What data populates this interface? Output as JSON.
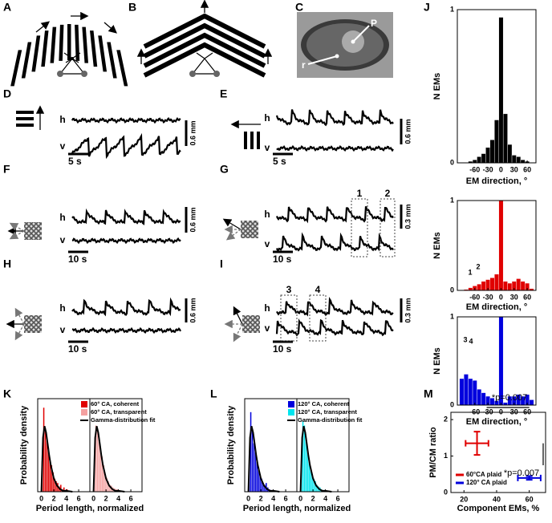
{
  "panels": [
    "A",
    "B",
    "C",
    "D",
    "E",
    "F",
    "G",
    "H",
    "I",
    "J",
    "K",
    "L",
    "M"
  ],
  "eye": [
    "P",
    "r"
  ],
  "traces": [
    {
      "h": "h",
      "v": "v",
      "amplitude": "0.6 mm",
      "time": "5 s"
    },
    {
      "h": "h",
      "v": "v",
      "amplitude": "0.6 mm",
      "time": "5 s"
    },
    {
      "h": "h",
      "v": "v",
      "amplitude": "0.6 mm",
      "time": "10 s"
    },
    {
      "h": "h",
      "v": "v",
      "amplitude": "0.3 mm",
      "time": "10 s",
      "windows": [
        "1",
        "2"
      ]
    },
    {
      "h": "h",
      "v": "v",
      "amplitude": "0.6 mm",
      "time": "10 s"
    },
    {
      "h": "h",
      "v": "v",
      "amplitude": "0.3 mm",
      "time": "10 s",
      "windows": [
        "3",
        "4"
      ]
    }
  ],
  "chart_data": [
    {
      "type": "histogram",
      "ylabel": "N EMs",
      "xlabel": "EM direction, °",
      "bins": [
        -95,
        -85,
        -75,
        -65,
        -55,
        -45,
        -35,
        -25,
        -15,
        -5,
        5,
        15,
        25,
        35,
        45,
        55,
        65,
        75
      ],
      "series": [
        {
          "color": "#000000",
          "values": [
            0,
            0,
            0.01,
            0.02,
            0.04,
            0.06,
            0.1,
            0.15,
            0.28,
            0.95,
            0.32,
            0.12,
            0.05,
            0.04,
            0.02,
            0.01,
            0
          ]
        }
      ],
      "xlim": [
        -100,
        80
      ],
      "xticks": [
        -60,
        -30,
        0,
        30,
        60
      ],
      "ylim": [
        0,
        1
      ],
      "yticks": [
        0,
        1
      ]
    },
    {
      "type": "histogram",
      "ylabel": "N EMs",
      "xlabel": "EM direction, °",
      "annotations": [
        "1",
        "2"
      ],
      "bins": [
        -95,
        -85,
        -75,
        -65,
        -55,
        -45,
        -35,
        -25,
        -15,
        -5,
        5,
        15,
        25,
        35,
        45,
        55,
        65,
        75
      ],
      "series": [
        {
          "color": "#e00000",
          "values": [
            0,
            0.01,
            0.03,
            0.05,
            0.07,
            0.1,
            0.12,
            0.14,
            0.18,
            1,
            0.1,
            0.08,
            0.1,
            0.13,
            0.1,
            0.08,
            0.02
          ]
        }
      ],
      "xlim": [
        -100,
        80
      ],
      "xticks": [
        -60,
        -30,
        0,
        30,
        60
      ],
      "ylim": [
        0,
        1
      ],
      "yticks": [
        0,
        1
      ]
    },
    {
      "type": "histogram",
      "ylabel": "N EMs",
      "xlabel": "EM direction, °",
      "annotations": [
        "3",
        "4"
      ],
      "bins": [
        -95,
        -85,
        -75,
        -65,
        -55,
        -45,
        -35,
        -25,
        -15,
        -5,
        5,
        15,
        25,
        35,
        45,
        55,
        65,
        75
      ],
      "series": [
        {
          "color": "#0000dd",
          "values": [
            0.3,
            0.35,
            0.3,
            0.28,
            0.18,
            0.14,
            0.1,
            0.08,
            0.05,
            1,
            0.03,
            0.1,
            0.1,
            0.12,
            0.1,
            0.12,
            0.06
          ]
        }
      ],
      "xlim": [
        -100,
        80
      ],
      "xticks": [
        -60,
        -30,
        0,
        30,
        60
      ],
      "ylim": [
        0,
        1
      ],
      "yticks": [
        0,
        1
      ]
    },
    {
      "type": "histogram",
      "ylabel": "Probability density",
      "xlabel": "Period length, normalized",
      "bins": [
        0,
        0.25,
        0.5,
        0.75,
        1,
        1.25,
        1.5,
        1.75,
        2,
        2.25,
        2.5,
        2.75,
        3,
        3.25,
        3.5,
        3.75,
        4,
        4.25,
        4.5,
        4.75,
        5
      ],
      "series": [
        {
          "name": "60° CA, coherent",
          "color": "#e00000",
          "values": [
            0.35,
            0.95,
            0.72,
            0.58,
            0.5,
            0.35,
            0.3,
            0.22,
            0.15,
            0.12,
            0.1,
            0.06,
            0.08,
            0.03,
            0.05,
            0.02,
            0.03,
            0,
            0,
            0
          ]
        }
      ],
      "fit": {
        "color": "#000000",
        "x": [
          0,
          0.25,
          0.5,
          0.75,
          1,
          1.25,
          1.5,
          2,
          2.5,
          3,
          3.5,
          4,
          5
        ],
        "values": [
          0,
          0.61,
          0.74,
          0.67,
          0.54,
          0.41,
          0.3,
          0.15,
          0.07,
          0.03,
          0.01,
          0.01,
          0
        ]
      },
      "xlim": [
        -0.6,
        7.8
      ],
      "xticks": [
        0,
        2,
        4,
        6
      ],
      "ylim": [
        0,
        1.05
      ]
    },
    {
      "type": "histogram",
      "bins": [
        0,
        0.25,
        0.5,
        0.75,
        1,
        1.25,
        1.5,
        1.75,
        2,
        2.25,
        2.5,
        2.75,
        3,
        3.25,
        3.5,
        3.75,
        4,
        4.25,
        4.5,
        4.75,
        5
      ],
      "series": [
        {
          "name": "60° CA, transparent",
          "color": "#f4a0a0",
          "values": [
            0.3,
            0.75,
            0.72,
            0.6,
            0.5,
            0.4,
            0.3,
            0.2,
            0.16,
            0.12,
            0.08,
            0.07,
            0.05,
            0.04,
            0.03,
            0.03,
            0.02,
            0.01,
            0.01,
            0
          ]
        }
      ],
      "fit": {
        "name": "Gamma-distribution fit",
        "color": "#000000",
        "x": [
          0,
          0.25,
          0.5,
          0.75,
          1,
          1.25,
          1.5,
          2,
          2.5,
          3,
          3.5,
          4,
          5
        ],
        "values": [
          0,
          0.61,
          0.74,
          0.67,
          0.54,
          0.41,
          0.3,
          0.15,
          0.07,
          0.03,
          0.01,
          0.01,
          0
        ]
      },
      "xlim": [
        -0.6,
        7.8
      ],
      "xticks": [
        0,
        2,
        4,
        6
      ],
      "ylim": [
        0,
        1.05
      ]
    },
    {
      "type": "histogram",
      "ylabel": "Probability density",
      "xlabel": "Period length, normalized",
      "bins": [
        0,
        0.25,
        0.5,
        0.75,
        1,
        1.25,
        1.5,
        1.75,
        2,
        2.25,
        2.5,
        2.75,
        3,
        3.25,
        3.5,
        3.75,
        4,
        4.25,
        4.5,
        4.75,
        5
      ],
      "series": [
        {
          "name": "120° CA, coherent",
          "color": "#0000dd",
          "values": [
            0.3,
            0.9,
            0.7,
            0.55,
            0.45,
            0.35,
            0.28,
            0.2,
            0.15,
            0.1,
            0.08,
            0.1,
            0.05,
            0.03,
            0.02,
            0.02,
            0,
            0,
            0,
            0
          ]
        }
      ],
      "fit": {
        "color": "#000000",
        "x": [
          0,
          0.25,
          0.5,
          0.75,
          1,
          1.25,
          1.5,
          2,
          2.5,
          3,
          3.5,
          4,
          5
        ],
        "values": [
          0,
          0.61,
          0.74,
          0.67,
          0.54,
          0.41,
          0.3,
          0.15,
          0.07,
          0.03,
          0.01,
          0.01,
          0
        ]
      },
      "xlim": [
        -0.6,
        7.8
      ],
      "xticks": [
        0,
        2,
        4,
        6
      ],
      "ylim": [
        0,
        1.05
      ]
    },
    {
      "type": "histogram",
      "bins": [
        0,
        0.25,
        0.5,
        0.75,
        1,
        1.25,
        1.5,
        1.75,
        2,
        2.25,
        2.5,
        2.75,
        3,
        3.25,
        3.5,
        3.75,
        4,
        4.25,
        4.5,
        4.75,
        5
      ],
      "series": [
        {
          "name": "120° CA, transparent",
          "color": "#00e5ee",
          "values": [
            0.35,
            0.8,
            0.75,
            0.6,
            0.45,
            0.35,
            0.28,
            0.2,
            0.15,
            0.12,
            0.08,
            0.06,
            0.05,
            0.03,
            0.02,
            0.02,
            0.01,
            0,
            0,
            0
          ]
        }
      ],
      "fit": {
        "name": "Gamma-distribution fit",
        "color": "#000000",
        "x": [
          0,
          0.25,
          0.5,
          0.75,
          1,
          1.25,
          1.5,
          2,
          2.5,
          3,
          3.5,
          4,
          5
        ],
        "values": [
          0,
          0.61,
          0.74,
          0.67,
          0.54,
          0.41,
          0.3,
          0.15,
          0.07,
          0.03,
          0.01,
          0.01,
          0
        ]
      },
      "xlim": [
        -0.6,
        7.8
      ],
      "xticks": [
        0,
        2,
        4,
        6
      ],
      "ylim": [
        0,
        1.05
      ]
    },
    {
      "type": "scatter",
      "ylabel": "PM/CM ratio",
      "xlabel": "Component EMs, %",
      "series": [
        {
          "name": "60°CA plaid",
          "color": "#e00000",
          "x": [
            28
          ],
          "values": [
            1.35
          ],
          "x_err": [
            7
          ],
          "y_err": [
            0.32
          ]
        },
        {
          "name": "120° CA plaid",
          "color": "#0000dd",
          "x": [
            60
          ],
          "values": [
            0.4
          ],
          "x_err": [
            7
          ],
          "y_err": [
            0.05
          ]
        }
      ],
      "annotations": [
        "*p=0.007",
        "*p=0.007"
      ],
      "xlim": [
        12,
        70
      ],
      "xticks": [
        20,
        40,
        60
      ],
      "ylim": [
        0,
        2.2
      ],
      "yticks": [
        0,
        1,
        2
      ]
    }
  ]
}
